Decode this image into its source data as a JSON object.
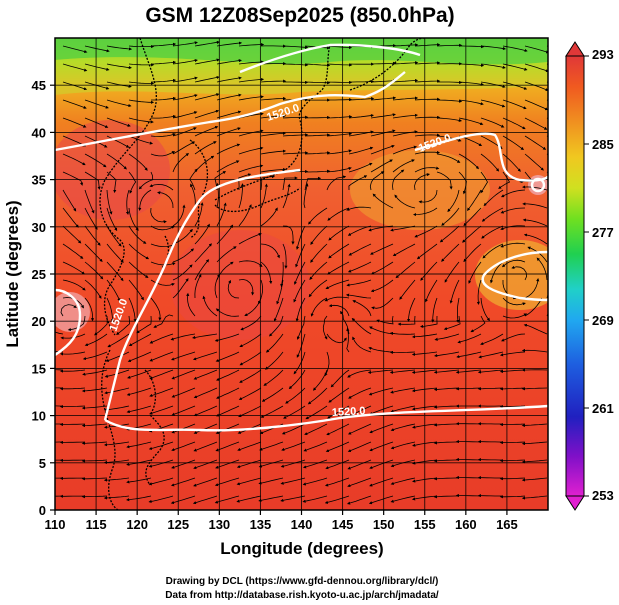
{
  "title": "GSM 12Z08Sep2025 (850.0hPa)",
  "x_axis": {
    "label": "Longitude (degrees)",
    "ticks": [
      "110",
      "115",
      "120",
      "125",
      "130",
      "135",
      "140",
      "145",
      "150",
      "155",
      "160",
      "165"
    ],
    "range": [
      110,
      170
    ]
  },
  "y_axis": {
    "label": "Latitude  (degrees)",
    "ticks": [
      "0",
      "5",
      "10",
      "15",
      "20",
      "25",
      "30",
      "35",
      "40",
      "45"
    ],
    "range": [
      0,
      50
    ]
  },
  "colorbar": {
    "ticks": [
      "293",
      "285",
      "277",
      "269",
      "261",
      "253"
    ],
    "range": [
      253,
      293
    ],
    "colors": [
      "#e020d0",
      "#8000c0",
      "#2020c0",
      "#2060e0",
      "#20a0f0",
      "#20d0d0",
      "#20d060",
      "#60e020",
      "#c0e020",
      "#f0d020",
      "#f0a020",
      "#f06020",
      "#e03030"
    ]
  },
  "contour_labels": [
    "1520.0",
    "1520.0",
    "1520.0",
    "1520.0"
  ],
  "credits": {
    "line1": "Drawing by DCL (https://www.gfd-dennou.org/library/dcl/)",
    "line2": "Data from http://database.rish.kyoto-u.ac.jp/arch/jmadata/"
  }
}
